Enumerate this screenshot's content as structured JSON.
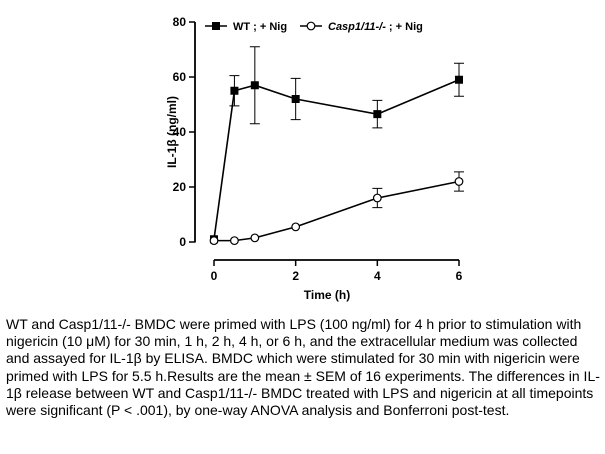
{
  "chart_data": {
    "type": "line",
    "xlabel": "Time (h)",
    "ylabel": "IL-1β (ng/ml)",
    "xlim": [
      0,
      6
    ],
    "ylim": [
      0,
      80
    ],
    "x_ticks": [
      "0",
      "2",
      "4",
      "6"
    ],
    "y_ticks": [
      "0",
      "20",
      "40",
      "60",
      "80"
    ],
    "legend_position": "top",
    "grid": false,
    "series": [
      {
        "name_parts": [
          "WT ; + Nig"
        ],
        "marker": "filled-square",
        "color": "#000000",
        "x": [
          0,
          0.5,
          1,
          2,
          4,
          6
        ],
        "values": [
          1,
          55,
          57,
          52,
          46.5,
          59
        ],
        "sem": [
          0.5,
          5.5,
          14,
          7.5,
          5,
          6
        ]
      },
      {
        "name_parts": [
          "Casp1/11-/-",
          " ; + Nig"
        ],
        "marker": "open-circle",
        "color": "#000000",
        "x": [
          0,
          0.5,
          1,
          2,
          4,
          6
        ],
        "values": [
          0.5,
          0.5,
          1.5,
          5.5,
          16,
          22
        ],
        "sem": [
          0.3,
          0.3,
          0.5,
          0.6,
          3.5,
          3.5
        ]
      }
    ]
  },
  "caption": "WT and Casp1/11-/- BMDC were primed with LPS (100 ng/ml) for 4 h prior to stimulation with nigericin (10 μM) for 30 min, 1 h, 2 h, 4 h, or 6 h, and the extracellular medium was collected and assayed for IL-1β by ELISA. BMDC which were stimulated for 30 min with nigericin were primed with LPS for 5.5 h.Results are the mean ± SEM of 16 experiments. The differences in IL-1β release between WT and Casp1/11-/- BMDC treated with LPS and nigericin at all timepoints were significant (P < .001), by one-way ANOVA analysis and Bonferroni post-test."
}
